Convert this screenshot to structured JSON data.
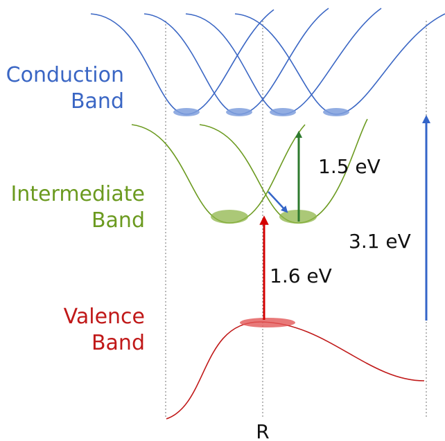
{
  "labels": {
    "conduction_line1": "Conduction",
    "conduction_line2": "Band",
    "intermediate_line1": "Intermediate",
    "intermediate_line2": "Band",
    "valence_line1": "Valence",
    "valence_line2": "Band",
    "energy_vb_ib": "1.6 eV",
    "energy_ib_cb": "1.5 eV",
    "energy_vb_cb": "3.1 eV",
    "x_point": "R"
  },
  "colors": {
    "conduction": "#3a66c4",
    "intermediate": "#6b9a1f",
    "valence": "#c01818",
    "green_arrow": "#2e7a2e",
    "blue_arrow": "#3465c8",
    "red_arrow": "#d40000",
    "text": "#111111",
    "guide": "#999999"
  }
}
